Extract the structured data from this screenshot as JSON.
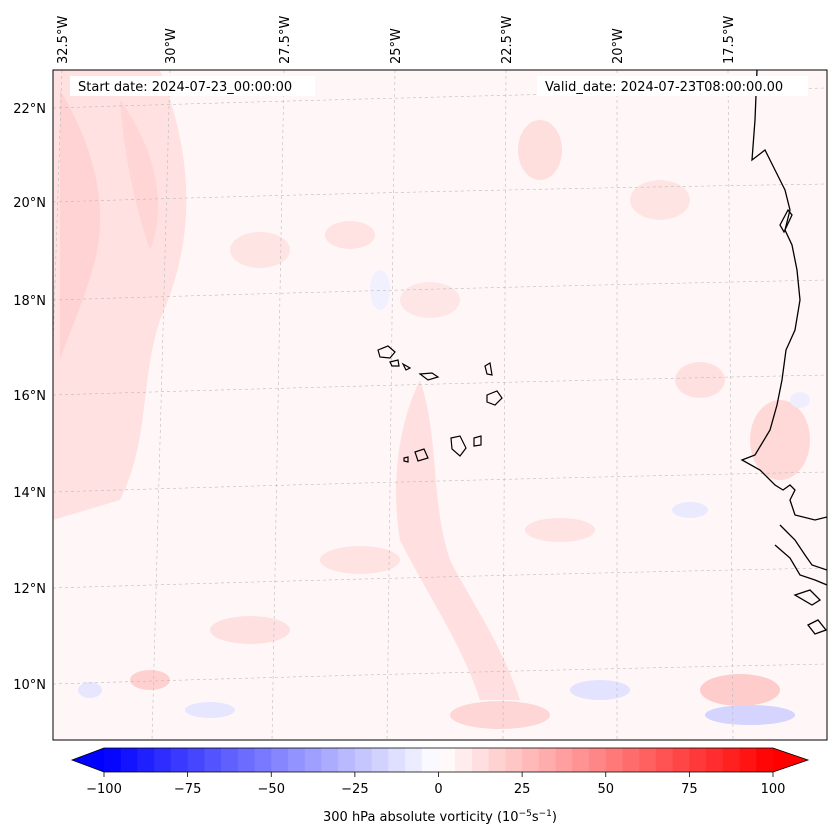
{
  "figure": {
    "start_date_text": "Start date: 2024-07-23_00:00:00",
    "valid_date_text": "Valid_date: 2024-07-23T08:00:00.00"
  },
  "map": {
    "projection": "rotated lat-lon",
    "longitude_labels": [
      "32.5°W",
      "30°W",
      "27.5°W",
      "25°W",
      "22.5°W",
      "20°W",
      "17.5°W"
    ],
    "latitude_labels": [
      "22°N",
      "20°N",
      "18°N",
      "16°N",
      "14°N",
      "12°N",
      "10°N"
    ],
    "features": [
      "Cape Verde islands",
      "West African coastline"
    ],
    "field": "300 hPa absolute vorticity"
  },
  "colorbar": {
    "ticks": [
      "−100",
      "−75",
      "−50",
      "−25",
      "0",
      "25",
      "50",
      "75",
      "100"
    ],
    "tick_values": [
      -100,
      -75,
      -50,
      -25,
      0,
      25,
      50,
      75,
      100
    ],
    "vmin": -100,
    "vmax": 100,
    "levels": 40,
    "label": "300 hPa absolute vorticity (10",
    "label_exp1": "−5",
    "label_mid": "s",
    "label_exp2": "−1",
    "label_end": ")",
    "cmap": "bwr",
    "low_color": "#0000ff",
    "mid_color": "#ffffff",
    "high_color": "#ff0000"
  }
}
